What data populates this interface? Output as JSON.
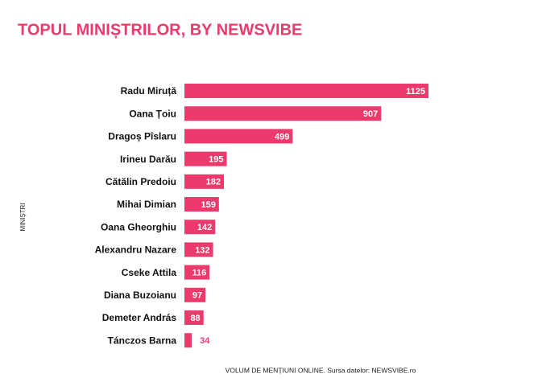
{
  "chart_data": {
    "type": "bar",
    "orientation": "horizontal",
    "title": "TOPUL MINIȘTRILOR, BY NEWSVIBE",
    "y_label": "MINIȘTRI",
    "x_label": "VOLUM DE MENȚIUNI ONLINE. Sursa datelor: NEWSVIBE.ro",
    "categories": [
      "Radu Miruță",
      "Oana Țoiu",
      "Dragoș Pîslaru",
      "Irineu Darău",
      "Cătălin Predoiu",
      "Mihai Dimian",
      "Oana Gheorghiu",
      "Alexandru Nazare",
      "Cseke Attila",
      "Diana Buzoianu",
      "Demeter András",
      "Tánczos Barna"
    ],
    "values": [
      1125,
      907,
      499,
      195,
      182,
      159,
      142,
      132,
      116,
      97,
      88,
      34
    ],
    "color": "#ec3a6d"
  }
}
